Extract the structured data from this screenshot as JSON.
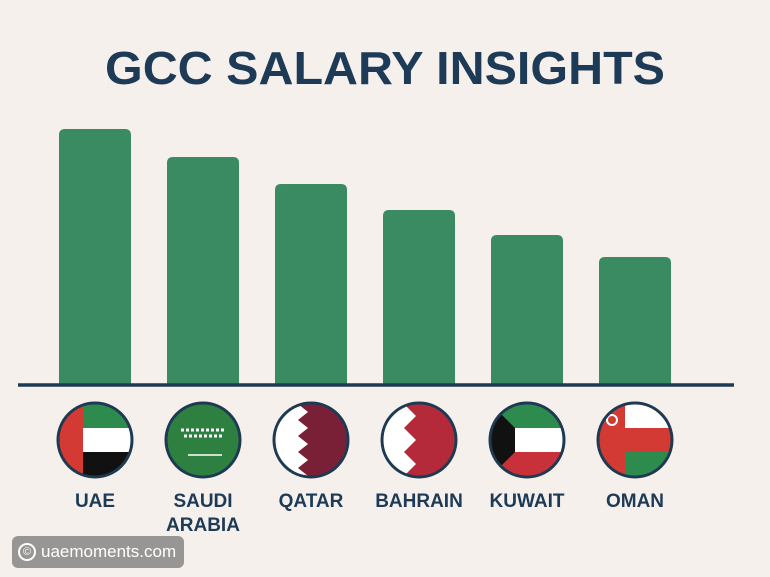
{
  "chart_data": {
    "type": "bar",
    "title": "GCC SALARY INSIGHTS",
    "categories": [
      "UAE",
      "SAUDI ARABIA",
      "QATAR",
      "BAHRAIN",
      "KUWAIT",
      "OMAN"
    ],
    "values": [
      256,
      228,
      201,
      175,
      150,
      128
    ],
    "color": "#3a8a62",
    "ylim": [
      0,
      270
    ]
  },
  "watermark": "uaemoments.com"
}
